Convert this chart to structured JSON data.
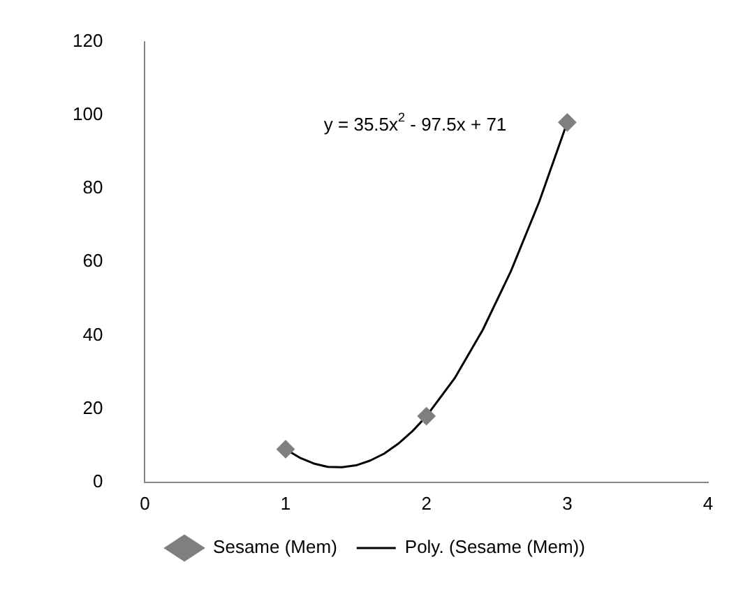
{
  "chart_data": {
    "type": "scatter",
    "xlim": [
      0,
      4
    ],
    "xticks": [
      0,
      1,
      2,
      3,
      4
    ],
    "ylim": [
      0,
      120
    ],
    "yticks": [
      0,
      20,
      40,
      60,
      80,
      100,
      120
    ],
    "grid": false,
    "legend": "bottom",
    "series": [
      {
        "name": "Sesame (Mem)",
        "type": "scatter",
        "marker": "diamond",
        "color": "#7f7f7f",
        "x": [
          1,
          2,
          3
        ],
        "values": [
          9,
          18,
          98
        ]
      },
      {
        "name": "Poly. (Sesame (Mem))",
        "type": "line",
        "marker": "none",
        "line_style": "solid",
        "color": "#000000",
        "x": [
          1,
          1.1,
          1.2,
          1.3,
          1.4,
          1.5,
          1.6,
          1.7,
          1.8,
          1.9,
          2,
          2.2,
          2.4,
          2.6,
          2.8,
          3
        ],
        "values": [
          9,
          6.7,
          5.1,
          4.2,
          4.1,
          4.6,
          5.9,
          7.8,
          10.5,
          13.9,
          18,
          28.3,
          41.5,
          57.5,
          76.3,
          98
        ]
      }
    ],
    "annotations": [
      "y = 35.5x$^{2}$ - 97.5x + 71"
    ]
  }
}
